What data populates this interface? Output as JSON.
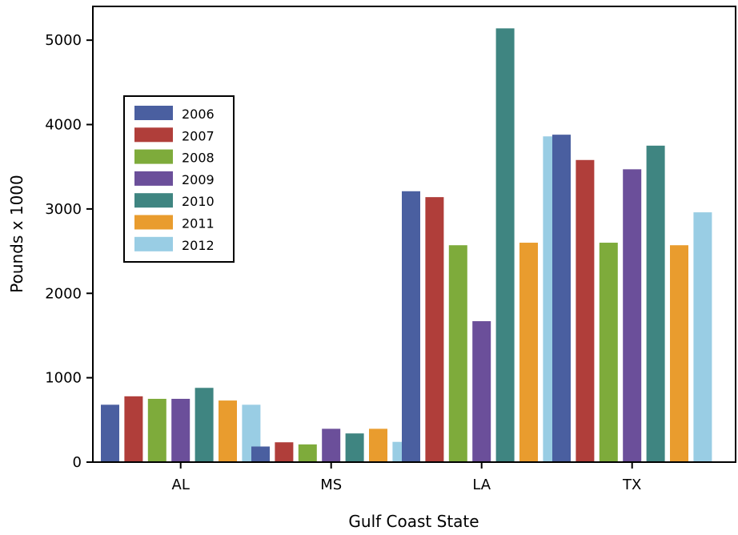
{
  "chart_data": {
    "type": "bar",
    "title": "",
    "xlabel": "Gulf Coast State",
    "ylabel": "Pounds x 1000",
    "categories": [
      "AL",
      "MS",
      "LA",
      "TX"
    ],
    "ylim": [
      0,
      5400
    ],
    "yticks": [
      0,
      1000,
      2000,
      3000,
      4000,
      5000
    ],
    "grid": false,
    "legend_position": "upper-left",
    "series": [
      {
        "name": "2006",
        "color": "#4a5fa0",
        "values": [
          680,
          185,
          3210,
          3880
        ]
      },
      {
        "name": "2007",
        "color": "#b03e3a",
        "values": [
          780,
          235,
          3140,
          3580
        ]
      },
      {
        "name": "2008",
        "color": "#7eab3b",
        "values": [
          750,
          210,
          2570,
          2600
        ]
      },
      {
        "name": "2009",
        "color": "#6b4f9a",
        "values": [
          750,
          395,
          1670,
          3470
        ]
      },
      {
        "name": "2010",
        "color": "#3f8581",
        "values": [
          880,
          340,
          5140,
          3750
        ]
      },
      {
        "name": "2011",
        "color": "#e99c2e",
        "values": [
          730,
          395,
          2600,
          2570
        ]
      },
      {
        "name": "2012",
        "color": "#99cde4",
        "values": [
          680,
          240,
          3860,
          2960
        ]
      }
    ]
  }
}
